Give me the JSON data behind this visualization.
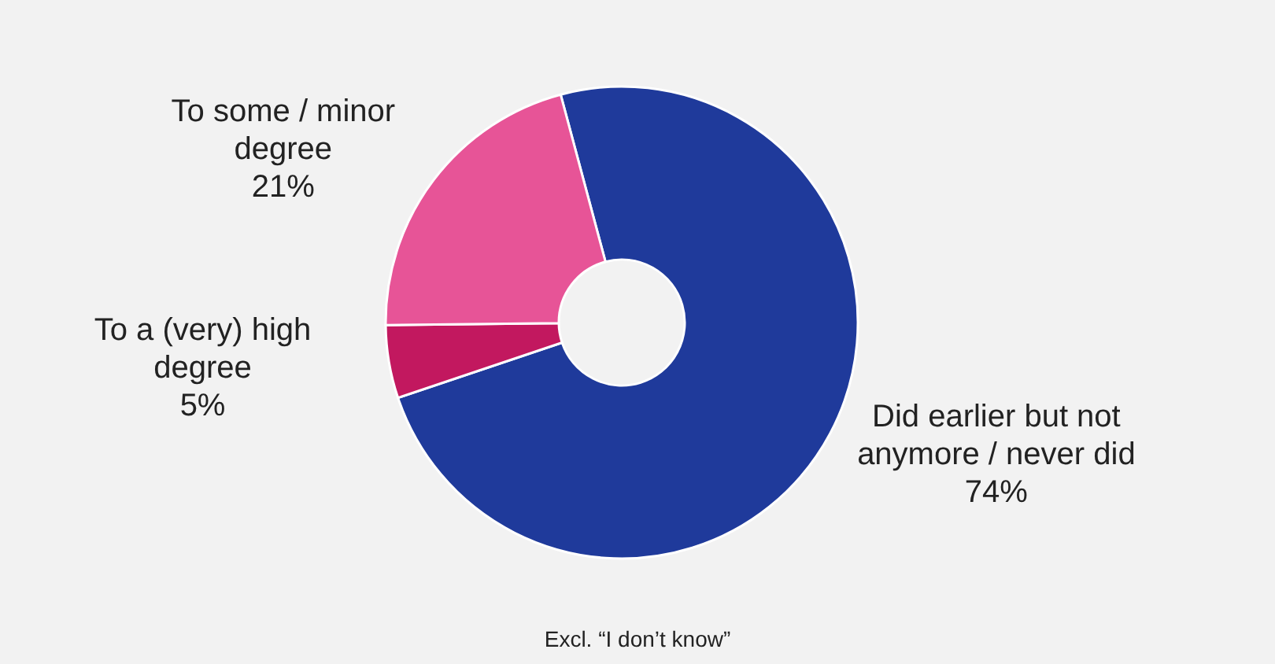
{
  "chart_data": {
    "type": "donut",
    "categories": [
      "Did earlier but not anymore / never did",
      "To a (very) high degree",
      "To some / minor degree"
    ],
    "values": [
      74,
      5,
      21
    ],
    "colors": [
      "#1f3a9b",
      "#c2185f",
      "#e75497"
    ],
    "value_labels": [
      "74%",
      "5%",
      "21%"
    ],
    "annotations": [
      "Excl. “I don’t know”"
    ]
  }
}
